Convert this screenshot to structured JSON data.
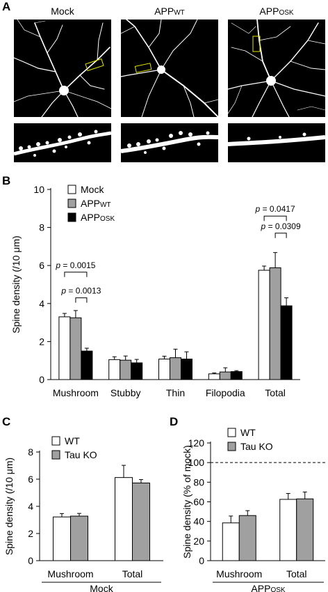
{
  "panel_a": {
    "label": "A",
    "titles": [
      {
        "main": "Mock",
        "sub": ""
      },
      {
        "main": "APP",
        "sub": "WT"
      },
      {
        "main": "APP",
        "sub": "OSK"
      }
    ]
  },
  "panel_b": {
    "label": "B"
  },
  "panel_c": {
    "label": "C",
    "group_label": "Mock"
  },
  "panel_d": {
    "label": "D",
    "group_label_main": "APP",
    "group_label_sub": "OSK"
  },
  "colors": {
    "white_bar": "#ffffff",
    "gray_bar": "#a0a0a0",
    "black_bar": "#000000",
    "highlight_box": "#e6e600"
  },
  "chart_data": [
    {
      "type": "bar",
      "ylabel": "Spine density (/10 μm)",
      "ylim": [
        0,
        10
      ],
      "yticks": [
        0,
        2,
        4,
        6,
        8,
        10
      ],
      "categories": [
        "Mushroom",
        "Stubby",
        "Thin",
        "Filopodia",
        "Total"
      ],
      "legend": [
        {
          "main": "Mock",
          "sub": ""
        },
        {
          "main": "APP",
          "sub": "WT"
        },
        {
          "main": "APP",
          "sub": "OSK"
        }
      ],
      "series": [
        {
          "name": "Mock",
          "values": [
            3.3,
            1.05,
            1.08,
            0.3,
            5.75
          ],
          "errors": [
            0.18,
            0.15,
            0.15,
            0.05,
            0.22
          ],
          "color": "#ffffff"
        },
        {
          "name": "APP WT",
          "values": [
            3.25,
            1.02,
            1.15,
            0.4,
            5.88
          ],
          "errors": [
            0.38,
            0.22,
            0.45,
            0.22,
            0.8
          ],
          "color": "#a0a0a0"
        },
        {
          "name": "APP OSK",
          "values": [
            1.5,
            0.88,
            1.08,
            0.42,
            3.88
          ],
          "errors": [
            0.15,
            0.18,
            0.38,
            0.05,
            0.42
          ],
          "color": "#000000"
        }
      ],
      "annotations": [
        {
          "text": "p = 0.0015",
          "category": "Mushroom",
          "from_series": 0,
          "to_series": 2,
          "y": 5.65
        },
        {
          "text": "p = 0.0013",
          "category": "Mushroom",
          "from_series": 1,
          "to_series": 2,
          "y": 4.3
        },
        {
          "text": "p = 0.0417",
          "category": "Total",
          "from_series": 0,
          "to_series": 2,
          "y": 8.6
        },
        {
          "text": "p = 0.0309",
          "category": "Total",
          "from_series": 1,
          "to_series": 2,
          "y": 7.7
        }
      ]
    },
    {
      "type": "bar",
      "ylabel": "Spine density (/10 μm)",
      "ylim": [
        0,
        8
      ],
      "yticks": [
        0,
        2,
        4,
        6,
        8
      ],
      "categories": [
        "Mushroom",
        "Total"
      ],
      "legend": [
        {
          "main": "WT",
          "sub": ""
        },
        {
          "main": "Tau KO",
          "sub": ""
        }
      ],
      "series": [
        {
          "name": "WT",
          "values": [
            3.22,
            6.12
          ],
          "errors": [
            0.25,
            0.9
          ],
          "color": "#ffffff"
        },
        {
          "name": "Tau KO",
          "values": [
            3.28,
            5.72
          ],
          "errors": [
            0.2,
            0.25
          ],
          "color": "#a0a0a0"
        }
      ]
    },
    {
      "type": "bar",
      "ylabel": "Spine density (% of mock)",
      "ylim": [
        0,
        120
      ],
      "yticks": [
        0,
        20,
        40,
        60,
        80,
        100,
        120
      ],
      "categories": [
        "Mushroom",
        "Total"
      ],
      "legend": [
        {
          "main": "WT",
          "sub": ""
        },
        {
          "main": "Tau KO",
          "sub": ""
        }
      ],
      "reference_line": 100,
      "series": [
        {
          "name": "WT",
          "values": [
            38.5,
            62.5
          ],
          "errors": [
            7,
            6
          ],
          "color": "#ffffff"
        },
        {
          "name": "Tau KO",
          "values": [
            46,
            63
          ],
          "errors": [
            5,
            7
          ],
          "color": "#a0a0a0"
        }
      ]
    }
  ]
}
